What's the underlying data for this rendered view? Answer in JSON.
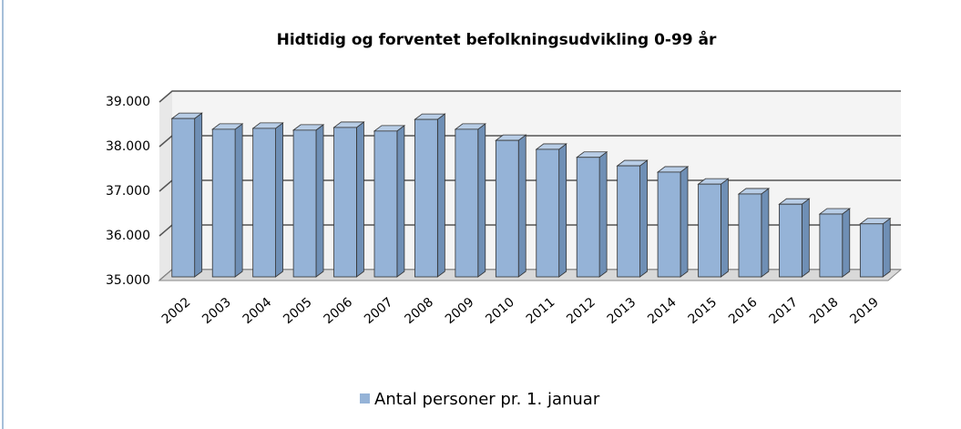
{
  "chart_data": {
    "type": "bar3d",
    "title": "Hidtidig og forventet befolkningsudvikling 0-99 år",
    "categories": [
      "2002",
      "2003",
      "2004",
      "2005",
      "2006",
      "2007",
      "2008",
      "2009",
      "2010",
      "2011",
      "2012",
      "2013",
      "2014",
      "2015",
      "2016",
      "2017",
      "2018",
      "2019"
    ],
    "series": [
      {
        "name": "Antal personer pr. 1. januar",
        "color": "#95b3d7",
        "values": [
          38630,
          38390,
          38410,
          38370,
          38430,
          38350,
          38610,
          38390,
          38140,
          37940,
          37760,
          37570,
          37430,
          37160,
          36940,
          36710,
          36490,
          36270
        ]
      }
    ],
    "ylim": [
      35000,
      39000
    ],
    "yticks": [
      {
        "value": 35000,
        "label": "35.000"
      },
      {
        "value": 36000,
        "label": "36.000"
      },
      {
        "value": 37000,
        "label": "37.000"
      },
      {
        "value": 38000,
        "label": "38.000"
      },
      {
        "value": 39000,
        "label": "39.000"
      }
    ],
    "grid": true
  }
}
